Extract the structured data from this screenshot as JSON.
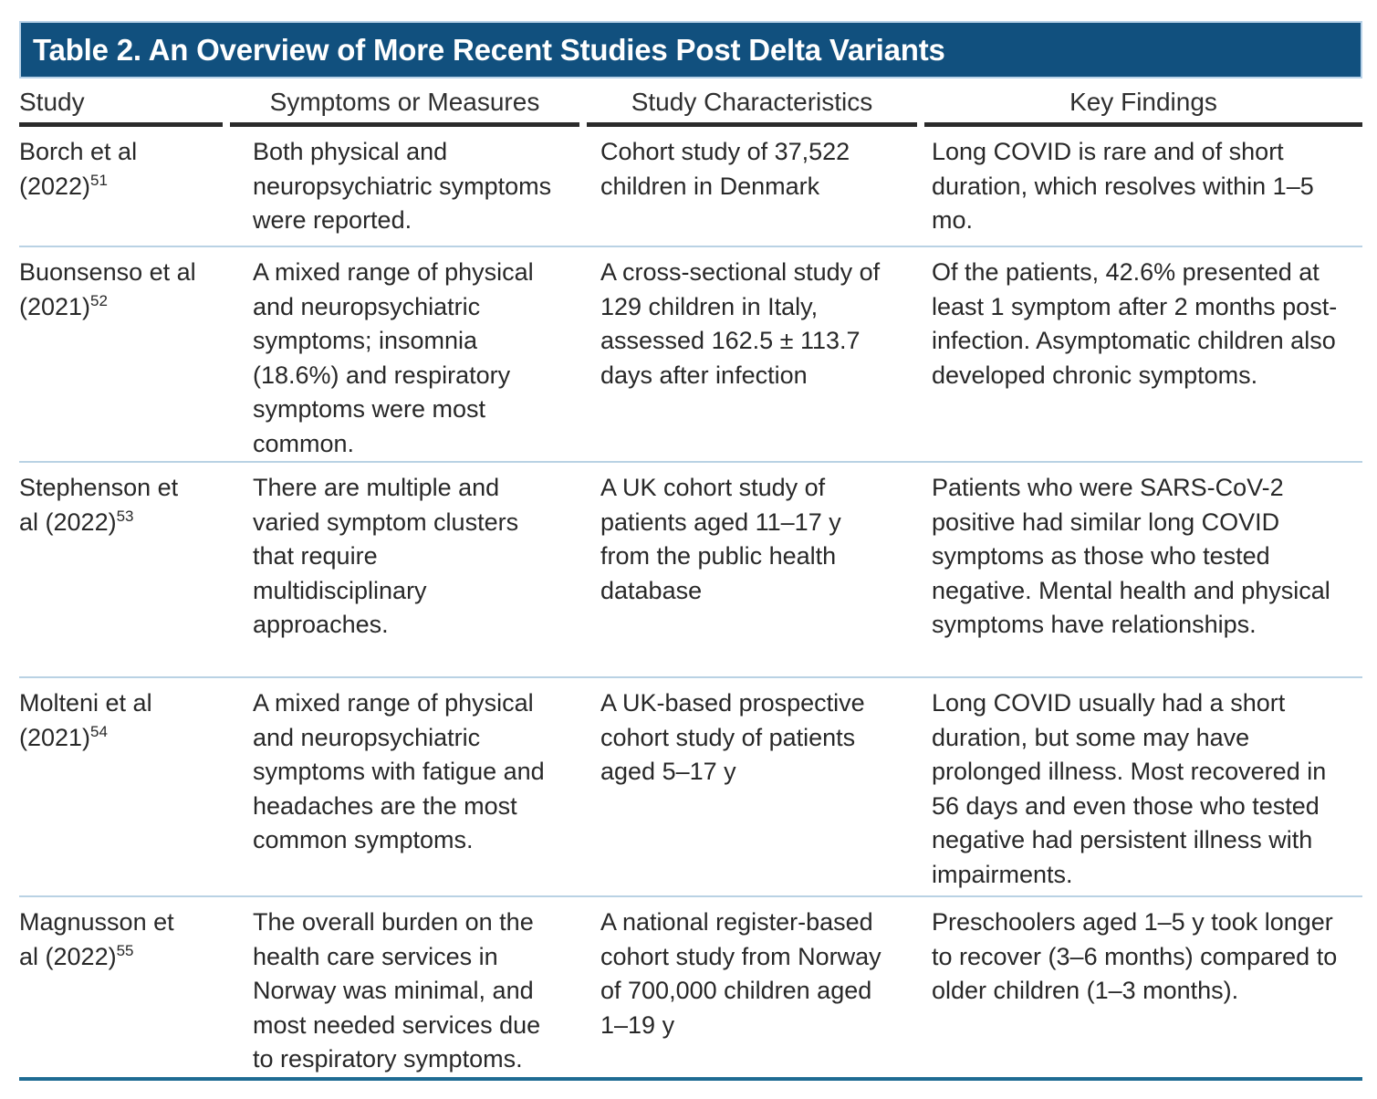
{
  "title": "Table 2. An Overview of More Recent Studies Post Delta Variants",
  "columns": [
    "Study",
    "Symptoms or Measures",
    "Study Characteristics",
    "Key Findings"
  ],
  "colors": {
    "title_bar": "#11507e",
    "title_bar_outline": "#b9d2e8",
    "title_text": "#ffffff",
    "header_rule": "#2b2b2b",
    "row_divider": "#b9d2e4",
    "bottom_border": "#1e6b93",
    "body_text": "#282828"
  },
  "rows": [
    {
      "study_name": "Borch et al",
      "study_year": "(2022)",
      "study_ref": "51",
      "symptoms": "Both physical and neuropsychiatric symptoms were reported.",
      "characteristics": "Cohort study of 37,522 children in Denmark",
      "findings": "Long COVID is rare and of short duration, which resolves within 1–5 mo."
    },
    {
      "study_name": "Buonsenso et al",
      "study_year": "(2021)",
      "study_ref": "52",
      "symptoms": "A mixed range of physical and neuropsychiatric symptoms; insomnia (18.6%) and respiratory symptoms were most common.",
      "characteristics": "A cross-sectional study of 129 children in Italy, assessed 162.5 ± 113.7 days after infection",
      "findings": "Of the patients, 42.6% presented at least 1 symptom after 2 months post-infection. Asymptomatic children also developed chronic symptoms."
    },
    {
      "study_name": "Stephenson et al",
      "study_year": "(2022)",
      "study_ref": "53",
      "symptoms": "There are multiple and varied symptom clusters that require multidisciplinary approaches.",
      "characteristics": "A UK cohort study of patients aged 11–17 y from the public health database",
      "findings": "Patients who were SARS-CoV-2 positive had similar long COVID symptoms as those who tested negative. Mental health and physical symptoms have relationships."
    },
    {
      "study_name": "Molteni et al",
      "study_year": "(2021)",
      "study_ref": "54",
      "symptoms": "A mixed range of physical and neuropsychiatric symptoms with fatigue and headaches are the most common symptoms.",
      "characteristics": "A UK-based prospective cohort study of patients aged 5–17 y",
      "findings": "Long COVID usually had a short duration, but some may have prolonged illness. Most recovered in 56 days and even those who tested negative had persistent illness with impairments."
    },
    {
      "study_name": "Magnusson et al",
      "study_year": "(2022)",
      "study_ref": "55",
      "symptoms": "The overall burden on the health care services in Norway was minimal, and most needed services due to respiratory symptoms.",
      "characteristics": "A national register-based cohort study from Norway of 700,000 children aged 1–19 y",
      "findings": "Preschoolers aged 1–5 y took longer to recover (3–6 months) compared to older children (1–3 months)."
    }
  ]
}
